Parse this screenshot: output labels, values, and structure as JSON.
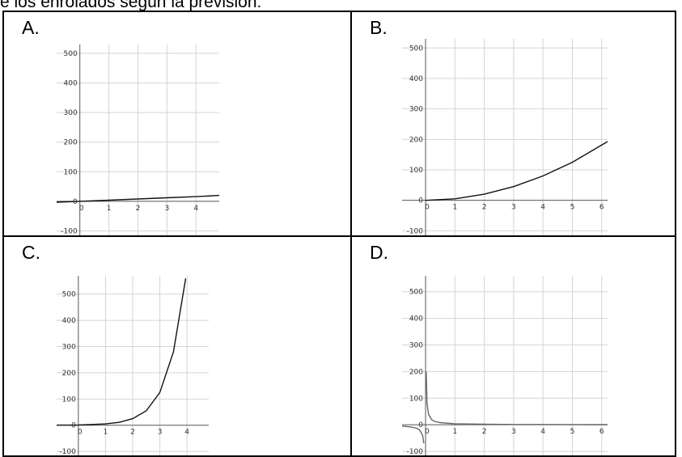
{
  "header": {
    "text": "e los enrolados según la previsión:"
  },
  "panels": [
    {
      "label": "A.",
      "yticks": [
        "500",
        "400",
        "300",
        "200",
        "100",
        "0",
        "-100"
      ],
      "xticks": [
        "0",
        "1",
        "2",
        "3",
        "4"
      ]
    },
    {
      "label": "B.",
      "yticks": [
        "500",
        "400",
        "300",
        "200",
        "100",
        "0",
        "-100"
      ],
      "xticks": [
        "0",
        "1",
        "2",
        "3",
        "4",
        "5",
        "6"
      ]
    },
    {
      "label": "C.",
      "yticks": [
        "500",
        "400",
        "300",
        "200",
        "100",
        "0",
        "-100"
      ],
      "xticks": [
        "0",
        "1",
        "2",
        "3",
        "4"
      ]
    },
    {
      "label": "D.",
      "yticks": [
        "500",
        "400",
        "300",
        "200",
        "100",
        "0",
        "-100"
      ],
      "xticks": [
        "0",
        "1",
        "2",
        "3",
        "4",
        "5",
        "6"
      ]
    }
  ],
  "chart_data": [
    {
      "type": "line",
      "title": "",
      "xlim": [
        -0.8,
        4.8
      ],
      "ylim": [
        -115,
        530
      ],
      "series": [
        {
          "x": [
            -0.8,
            0,
            1,
            2,
            3,
            4,
            4.8
          ],
          "y": [
            -3,
            0,
            4,
            8,
            12,
            16,
            20
          ]
        }
      ]
    },
    {
      "type": "line",
      "title": "",
      "xlim": [
        -0.8,
        6.2
      ],
      "ylim": [
        -115,
        530
      ],
      "series": [
        {
          "x": [
            0,
            1,
            2,
            3,
            4,
            5,
            6.2
          ],
          "y": [
            0,
            5,
            20,
            45,
            80,
            125,
            193
          ]
        }
      ]
    },
    {
      "type": "line",
      "title": "",
      "xlim": [
        -0.8,
        4.8
      ],
      "ylim": [
        -115,
        570
      ],
      "series": [
        {
          "x": [
            -0.8,
            0,
            1,
            1.5,
            2,
            2.5,
            3,
            3.5,
            3.95
          ],
          "y": [
            0.3,
            1,
            5,
            11,
            25,
            55,
            125,
            280,
            560
          ]
        }
      ]
    },
    {
      "type": "line",
      "title": "",
      "xlim": [
        -0.8,
        6.2
      ],
      "ylim": [
        -115,
        560
      ],
      "series": [
        {
          "x": [
            0.02,
            0.05,
            0.1,
            0.2,
            0.3,
            0.5,
            1,
            2,
            3,
            4,
            5,
            6.2
          ],
          "y": [
            200,
            80,
            40,
            20,
            13,
            8,
            4,
            2,
            1.3,
            1,
            0.8,
            0.6
          ]
        },
        {
          "x": [
            -0.8,
            -0.5,
            -0.3,
            -0.2,
            -0.1,
            -0.06
          ],
          "y": [
            -5,
            -8,
            -13,
            -20,
            -40,
            -70
          ]
        }
      ]
    }
  ]
}
